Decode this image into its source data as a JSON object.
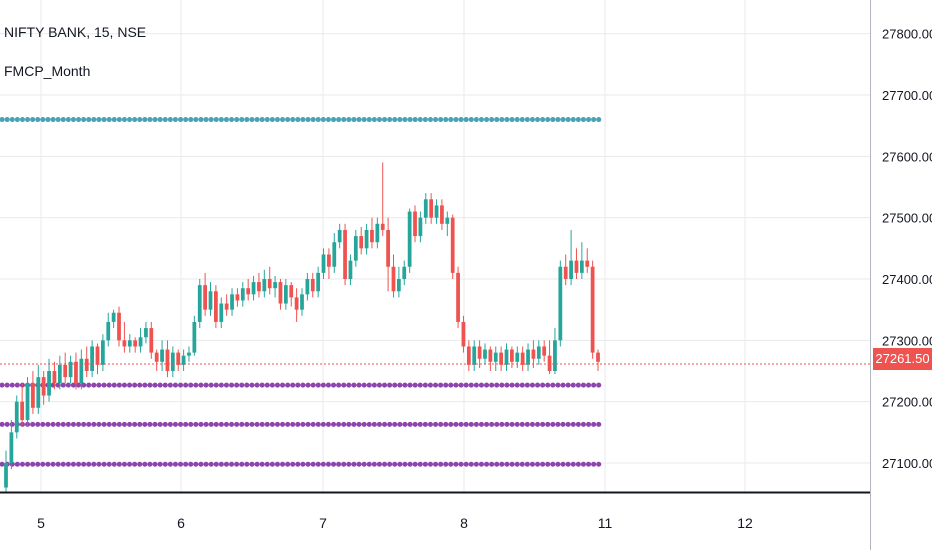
{
  "header": {
    "title": "NIFTY BANK, 15, NSE",
    "indicator": "FMCP_Month"
  },
  "colors": {
    "up": "#26a69a",
    "down": "#ef5350",
    "level_teal": "#4aa3b5",
    "level_purple": "#8e44ad",
    "grid": "#e8eaee",
    "axis_text": "#131722",
    "last_price_line": "#ef5350"
  },
  "chart_data": {
    "type": "candlestick",
    "title": "NIFTY BANK, 15, NSE",
    "price_axis": {
      "ticks": [
        "27100.00",
        "27200.00",
        "27300.00",
        "27400.00",
        "27500.00",
        "27600.00",
        "27700.00",
        "27800.00"
      ],
      "ylim": [
        27050,
        27850
      ],
      "position": "right"
    },
    "time_axis": {
      "ticks": [
        "5",
        "6",
        "7",
        "8",
        "11",
        "12"
      ]
    },
    "last_price": "27261.50",
    "levels": [
      {
        "value": 27660,
        "color": "teal",
        "style": "dotted"
      },
      {
        "value": 27227,
        "color": "purple",
        "style": "dotted"
      },
      {
        "value": 27163,
        "color": "purple",
        "style": "dotted"
      },
      {
        "value": 27098,
        "color": "purple",
        "style": "dotted"
      }
    ],
    "grid": true,
    "candles": [
      [
        27060,
        27100,
        27050,
        27120
      ],
      [
        27100,
        27150,
        27090,
        27170
      ],
      [
        27150,
        27200,
        27140,
        27210
      ],
      [
        27200,
        27170,
        27160,
        27230
      ],
      [
        27170,
        27230,
        27160,
        27240
      ],
      [
        27230,
        27190,
        27180,
        27250
      ],
      [
        27190,
        27240,
        27180,
        27260
      ],
      [
        27240,
        27210,
        27195,
        27250
      ],
      [
        27210,
        27250,
        27200,
        27270
      ],
      [
        27250,
        27230,
        27220,
        27265
      ],
      [
        27230,
        27260,
        27220,
        27275
      ],
      [
        27260,
        27240,
        27230,
        27280
      ],
      [
        27240,
        27265,
        27230,
        27275
      ],
      [
        27265,
        27230,
        27220,
        27280
      ],
      [
        27230,
        27270,
        27220,
        27285
      ],
      [
        27270,
        27250,
        27240,
        27290
      ],
      [
        27250,
        27290,
        27240,
        27300
      ],
      [
        27290,
        27260,
        27245,
        27295
      ],
      [
        27260,
        27300,
        27250,
        27310
      ],
      [
        27300,
        27330,
        27290,
        27345
      ],
      [
        27330,
        27345,
        27320,
        27350
      ],
      [
        27345,
        27300,
        27290,
        27355
      ],
      [
        27300,
        27290,
        27280,
        27330
      ],
      [
        27290,
        27300,
        27280,
        27310
      ],
      [
        27300,
        27290,
        27280,
        27305
      ],
      [
        27290,
        27305,
        27280,
        27320
      ],
      [
        27305,
        27320,
        27295,
        27330
      ],
      [
        27320,
        27280,
        27270,
        27330
      ],
      [
        27280,
        27265,
        27250,
        27285
      ],
      [
        27265,
        27285,
        27250,
        27300
      ],
      [
        27285,
        27250,
        27240,
        27300
      ],
      [
        27250,
        27280,
        27240,
        27290
      ],
      [
        27280,
        27260,
        27250,
        27285
      ],
      [
        27260,
        27275,
        27250,
        27285
      ],
      [
        27275,
        27280,
        27265,
        27290
      ],
      [
        27280,
        27330,
        27275,
        27340
      ],
      [
        27330,
        27390,
        27320,
        27400
      ],
      [
        27390,
        27350,
        27340,
        27410
      ],
      [
        27350,
        27380,
        27340,
        27395
      ],
      [
        27380,
        27330,
        27320,
        27390
      ],
      [
        27330,
        27360,
        27320,
        27370
      ],
      [
        27360,
        27350,
        27340,
        27375
      ],
      [
        27350,
        27375,
        27340,
        27385
      ],
      [
        27375,
        27365,
        27355,
        27385
      ],
      [
        27365,
        27385,
        27355,
        27395
      ],
      [
        27385,
        27375,
        27365,
        27400
      ],
      [
        27375,
        27395,
        27365,
        27405
      ],
      [
        27395,
        27380,
        27370,
        27410
      ],
      [
        27380,
        27400,
        27370,
        27415
      ],
      [
        27400,
        27385,
        27375,
        27420
      ],
      [
        27385,
        27395,
        27370,
        27405
      ],
      [
        27395,
        27360,
        27350,
        27400
      ],
      [
        27360,
        27390,
        27350,
        27400
      ],
      [
        27390,
        27370,
        27355,
        27395
      ],
      [
        27370,
        27350,
        27330,
        27385
      ],
      [
        27350,
        27375,
        27340,
        27385
      ],
      [
        27375,
        27400,
        27365,
        27410
      ],
      [
        27400,
        27380,
        27370,
        27410
      ],
      [
        27380,
        27410,
        27370,
        27420
      ],
      [
        27410,
        27440,
        27400,
        27450
      ],
      [
        27440,
        27420,
        27400,
        27450
      ],
      [
        27420,
        27460,
        27410,
        27475
      ],
      [
        27460,
        27480,
        27450,
        27490
      ],
      [
        27480,
        27400,
        27390,
        27490
      ],
      [
        27400,
        27430,
        27390,
        27440
      ],
      [
        27430,
        27470,
        27420,
        27480
      ],
      [
        27470,
        27450,
        27440,
        27485
      ],
      [
        27450,
        27480,
        27440,
        27490
      ],
      [
        27480,
        27460,
        27450,
        27500
      ],
      [
        27460,
        27490,
        27450,
        27500
      ],
      [
        27490,
        27480,
        27470,
        27590
      ],
      [
        27480,
        27420,
        27380,
        27500
      ],
      [
        27420,
        27380,
        27370,
        27440
      ],
      [
        27380,
        27400,
        27370,
        27420
      ],
      [
        27400,
        27420,
        27390,
        27430
      ],
      [
        27420,
        27510,
        27410,
        27515
      ],
      [
        27510,
        27470,
        27460,
        27520
      ],
      [
        27470,
        27500,
        27460,
        27510
      ],
      [
        27500,
        27530,
        27490,
        27540
      ],
      [
        27530,
        27500,
        27490,
        27540
      ],
      [
        27500,
        27520,
        27490,
        27530
      ],
      [
        27520,
        27490,
        27480,
        27530
      ],
      [
        27490,
        27500,
        27470,
        27510
      ],
      [
        27500,
        27410,
        27400,
        27505
      ],
      [
        27410,
        27330,
        27320,
        27420
      ],
      [
        27330,
        27290,
        27280,
        27340
      ],
      [
        27290,
        27260,
        27250,
        27300
      ],
      [
        27260,
        27290,
        27250,
        27300
      ],
      [
        27290,
        27270,
        27255,
        27300
      ],
      [
        27270,
        27285,
        27260,
        27295
      ],
      [
        27285,
        27265,
        27250,
        27290
      ],
      [
        27265,
        27280,
        27250,
        27290
      ],
      [
        27280,
        27260,
        27250,
        27290
      ],
      [
        27260,
        27285,
        27250,
        27295
      ],
      [
        27285,
        27265,
        27255,
        27290
      ],
      [
        27265,
        27280,
        27255,
        27290
      ],
      [
        27280,
        27260,
        27250,
        27290
      ],
      [
        27260,
        27285,
        27250,
        27295
      ],
      [
        27285,
        27270,
        27255,
        27300
      ],
      [
        27270,
        27290,
        27260,
        27300
      ],
      [
        27290,
        27275,
        27265,
        27300
      ],
      [
        27275,
        27250,
        27245,
        27300
      ],
      [
        27250,
        27300,
        27245,
        27320
      ],
      [
        27300,
        27420,
        27290,
        27430
      ],
      [
        27420,
        27400,
        27390,
        27440
      ],
      [
        27400,
        27430,
        27390,
        27480
      ],
      [
        27430,
        27410,
        27400,
        27450
      ],
      [
        27410,
        27430,
        27400,
        27460
      ],
      [
        27430,
        27420,
        27410,
        27450
      ],
      [
        27420,
        27280,
        27270,
        27430
      ],
      [
        27280,
        27265,
        27250,
        27285
      ]
    ]
  }
}
